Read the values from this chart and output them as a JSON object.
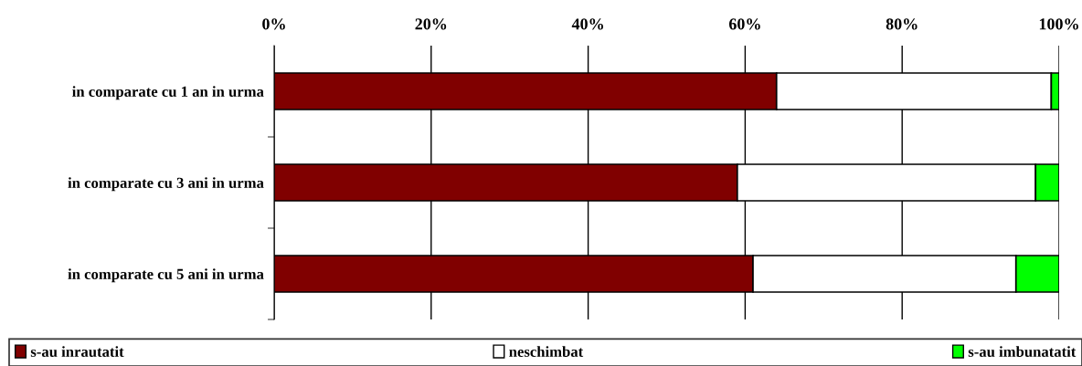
{
  "chart_data": {
    "type": "bar",
    "orientation": "horizontal",
    "stacked": true,
    "categories": [
      "in comparate cu 1 an in urma",
      "in comparate cu 3 ani in urma",
      "in comparate cu 5 ani in urma"
    ],
    "series": [
      {
        "name": "s-au inrautatit",
        "color": "#800000",
        "values": [
          64,
          59,
          61
        ]
      },
      {
        "name": "neschimbat",
        "color": "#ffffff",
        "values": [
          35,
          38,
          33.5
        ]
      },
      {
        "name": "s-au imbunatatit",
        "color": "#00ff00",
        "values": [
          1,
          3,
          5.5
        ]
      }
    ],
    "xlim": [
      0,
      100
    ],
    "xticks": [
      {
        "value": 0,
        "label": "0%"
      },
      {
        "value": 20,
        "label": "20%"
      },
      {
        "value": 40,
        "label": "40%"
      },
      {
        "value": 60,
        "label": "60%"
      },
      {
        "value": 80,
        "label": "80%"
      },
      {
        "value": 100,
        "label": "100%"
      }
    ],
    "grid": "x",
    "legend": "bottom"
  }
}
